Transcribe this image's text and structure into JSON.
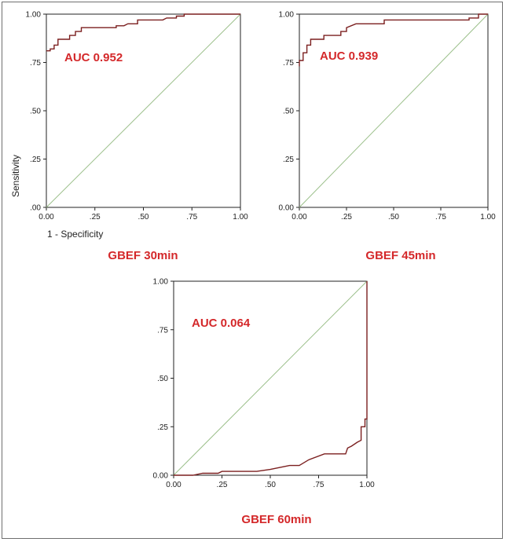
{
  "colors": {
    "roc": "#7b1f1f",
    "reference": "#9bbf8a",
    "annotation": "#d4282a",
    "axis": "#222222"
  },
  "chart_data": [
    {
      "type": "line",
      "caption": "GBEF 30min",
      "annotation": "AUC 0.952",
      "xlabel": "1 - Specificity",
      "ylabel": "Sensitivity",
      "xlim": [
        0,
        1
      ],
      "ylim": [
        0,
        1
      ],
      "x_ticks": [
        "0.00",
        ".25",
        ".50",
        ".75",
        "1.00"
      ],
      "y_ticks": [
        ".00",
        ".25",
        ".50",
        ".75",
        "1.00"
      ],
      "series": [
        {
          "points": [
            [
              0,
              0.81
            ],
            [
              0.02,
              0.81
            ],
            [
              0.02,
              0.82
            ],
            [
              0.04,
              0.82
            ],
            [
              0.04,
              0.84
            ],
            [
              0.06,
              0.84
            ],
            [
              0.06,
              0.87
            ],
            [
              0.09,
              0.87
            ],
            [
              0.12,
              0.87
            ],
            [
              0.12,
              0.89
            ],
            [
              0.15,
              0.89
            ],
            [
              0.15,
              0.91
            ],
            [
              0.18,
              0.91
            ],
            [
              0.18,
              0.93
            ],
            [
              0.25,
              0.93
            ],
            [
              0.36,
              0.93
            ],
            [
              0.36,
              0.94
            ],
            [
              0.4,
              0.94
            ],
            [
              0.42,
              0.95
            ],
            [
              0.47,
              0.95
            ],
            [
              0.47,
              0.97
            ],
            [
              0.6,
              0.97
            ],
            [
              0.62,
              0.98
            ],
            [
              0.67,
              0.98
            ],
            [
              0.67,
              0.99
            ],
            [
              0.71,
              0.99
            ],
            [
              0.71,
              1.0
            ],
            [
              1.0,
              1.0
            ]
          ]
        },
        {
          "points": [
            [
              0,
              0
            ],
            [
              1,
              1
            ]
          ]
        }
      ]
    },
    {
      "type": "line",
      "caption": "GBEF 45min",
      "annotation": "AUC 0.939",
      "xlabel": "",
      "ylabel": "",
      "xlim": [
        0,
        1
      ],
      "ylim": [
        0,
        1
      ],
      "x_ticks": [
        "0.00",
        ".25",
        ".50",
        ".75",
        "1.00"
      ],
      "y_ticks": [
        "0.00",
        ".25",
        ".50",
        ".75",
        "1.00"
      ],
      "series": [
        {
          "points": [
            [
              0,
              0.73
            ],
            [
              0,
              0.76
            ],
            [
              0.02,
              0.76
            ],
            [
              0.02,
              0.8
            ],
            [
              0.04,
              0.8
            ],
            [
              0.04,
              0.84
            ],
            [
              0.06,
              0.84
            ],
            [
              0.06,
              0.87
            ],
            [
              0.13,
              0.87
            ],
            [
              0.13,
              0.89
            ],
            [
              0.22,
              0.89
            ],
            [
              0.22,
              0.91
            ],
            [
              0.25,
              0.91
            ],
            [
              0.25,
              0.93
            ],
            [
              0.3,
              0.95
            ],
            [
              0.45,
              0.95
            ],
            [
              0.45,
              0.97
            ],
            [
              0.9,
              0.97
            ],
            [
              0.9,
              0.98
            ],
            [
              0.95,
              0.98
            ],
            [
              0.95,
              1.0
            ],
            [
              1.0,
              1.0
            ]
          ]
        },
        {
          "points": [
            [
              0,
              0
            ],
            [
              1,
              1
            ]
          ]
        }
      ]
    },
    {
      "type": "line",
      "caption": "GBEF 60min",
      "annotation": "AUC 0.064",
      "xlabel": "",
      "ylabel": "",
      "xlim": [
        0,
        1
      ],
      "ylim": [
        0,
        1
      ],
      "x_ticks": [
        "0.00",
        ".25",
        ".50",
        ".75",
        "1.00"
      ],
      "y_ticks": [
        "0.00",
        ".25",
        ".50",
        ".75",
        "1.00"
      ],
      "series": [
        {
          "points": [
            [
              0,
              0
            ],
            [
              0.1,
              0
            ],
            [
              0.15,
              0.01
            ],
            [
              0.23,
              0.01
            ],
            [
              0.25,
              0.02
            ],
            [
              0.43,
              0.02
            ],
            [
              0.5,
              0.03
            ],
            [
              0.55,
              0.04
            ],
            [
              0.6,
              0.05
            ],
            [
              0.65,
              0.05
            ],
            [
              0.7,
              0.08
            ],
            [
              0.78,
              0.11
            ],
            [
              0.89,
              0.11
            ],
            [
              0.9,
              0.14
            ],
            [
              0.92,
              0.15
            ],
            [
              0.95,
              0.17
            ],
            [
              0.97,
              0.18
            ],
            [
              0.97,
              0.25
            ],
            [
              0.99,
              0.25
            ],
            [
              0.99,
              0.29
            ],
            [
              1.0,
              0.29
            ],
            [
              1.0,
              1.0
            ]
          ]
        },
        {
          "points": [
            [
              0,
              0
            ],
            [
              1,
              1
            ]
          ]
        }
      ]
    }
  ]
}
